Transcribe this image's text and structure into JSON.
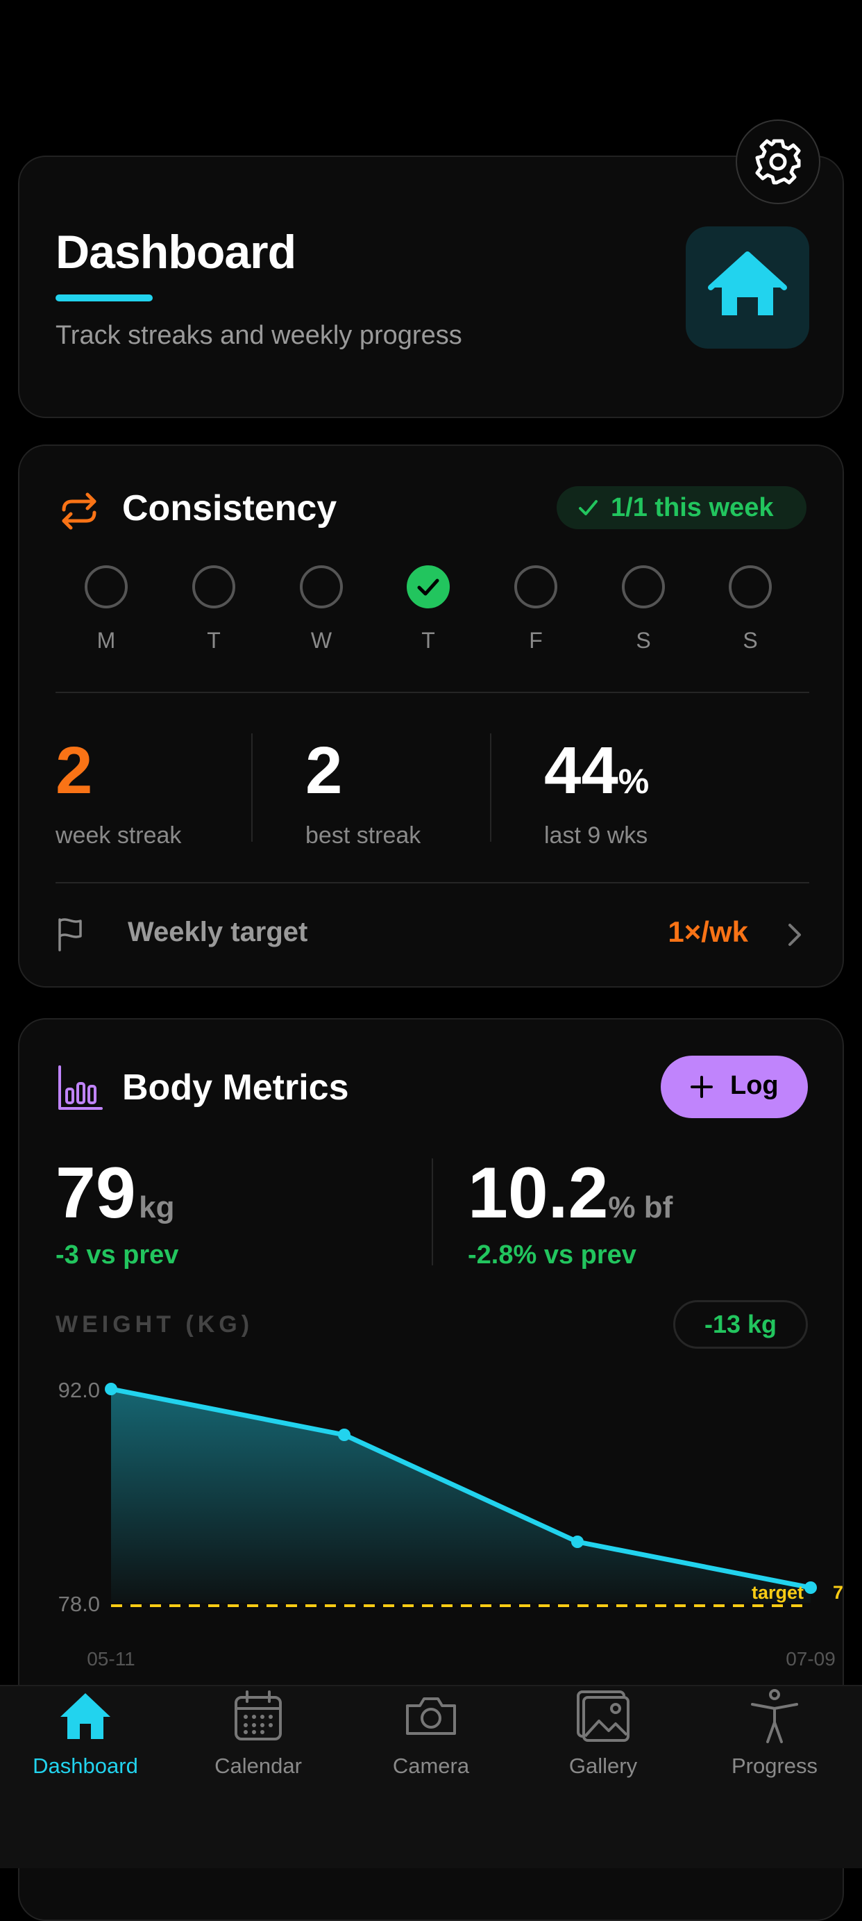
{
  "header": {
    "title": "Dashboard",
    "subtitle": "Track streaks and weekly progress",
    "settings_icon": "gear-icon",
    "home_icon": "home-icon",
    "accent": "#22d3ee"
  },
  "consistency": {
    "title": "Consistency",
    "icon": "repeat-icon",
    "badge": "1/1 this week",
    "days": [
      {
        "label": "M",
        "done": false
      },
      {
        "label": "T",
        "done": false
      },
      {
        "label": "W",
        "done": false
      },
      {
        "label": "T",
        "done": true
      },
      {
        "label": "F",
        "done": false
      },
      {
        "label": "S",
        "done": false
      },
      {
        "label": "S",
        "done": false
      }
    ],
    "stats": {
      "week_streak_value": "2",
      "week_streak_label": "week streak",
      "best_streak_value": "2",
      "best_streak_label": "best streak",
      "pct_value": "44",
      "pct_unit": "%",
      "pct_label": "last 9 wks"
    },
    "target_label": "Weekly target",
    "target_value": "1×/wk",
    "orange": "#f97316",
    "green": "#22c55e"
  },
  "body_metrics": {
    "title": "Body Metrics",
    "log_label": "Log",
    "weight_value": "79",
    "weight_unit": "kg",
    "weight_delta": "-3 vs prev",
    "bf_value": "10.2",
    "bf_unit": "% bf",
    "bf_delta": "-2.8% vs prev",
    "section_label": "WEIGHT (KG)",
    "change_badge": "-13 kg",
    "purple": "#c084fc"
  },
  "chart_data": {
    "type": "area",
    "x": [
      "05-11",
      "",
      "",
      "07-09"
    ],
    "values": [
      92,
      89,
      82,
      79
    ],
    "ylim": [
      78.0,
      92.0
    ],
    "ytick_labels": [
      "92.0",
      "78.0"
    ],
    "xtick_labels": [
      "05-11",
      "07-09"
    ],
    "target_value": 78,
    "target_label": "target",
    "target_value_label": "7"
  },
  "nav": {
    "items": [
      {
        "label": "Dashboard",
        "icon": "home-icon",
        "active": true
      },
      {
        "label": "Calendar",
        "icon": "calendar-icon",
        "active": false
      },
      {
        "label": "Camera",
        "icon": "camera-icon",
        "active": false
      },
      {
        "label": "Gallery",
        "icon": "gallery-icon",
        "active": false
      },
      {
        "label": "Progress",
        "icon": "person-icon",
        "active": false
      }
    ]
  }
}
